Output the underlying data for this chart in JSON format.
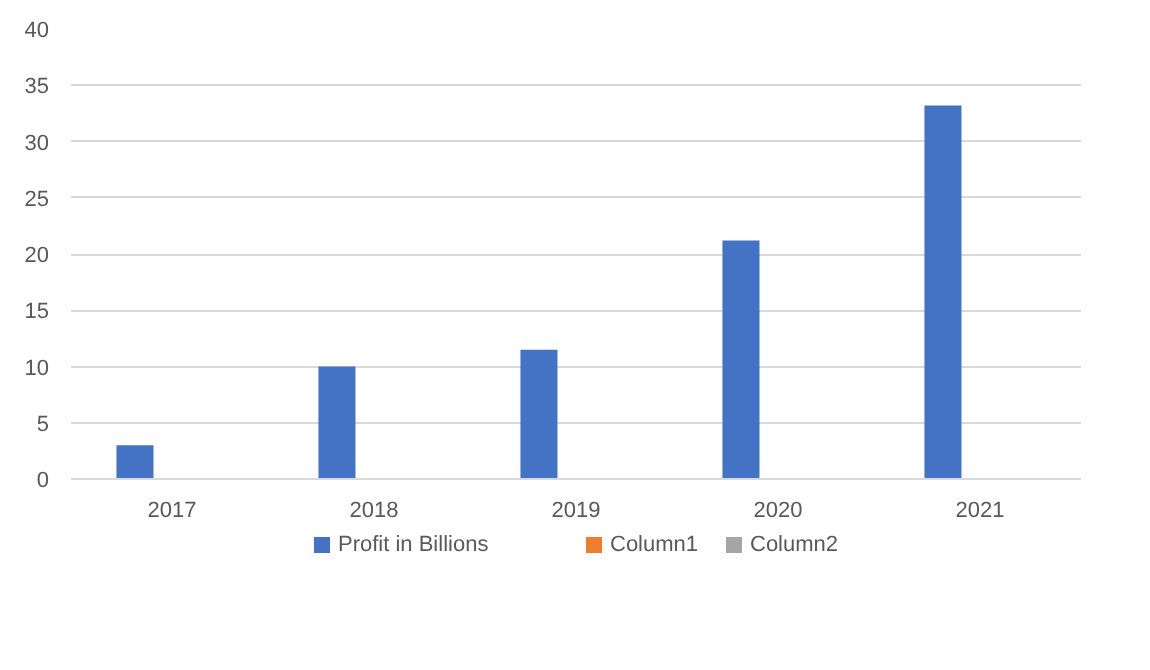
{
  "chart_data": {
    "type": "bar",
    "categories": [
      "2017",
      "2018",
      "2019",
      "2020",
      "2021"
    ],
    "series": [
      {
        "name": "Profit in Billions",
        "color": "#4472c4",
        "values": [
          3,
          10,
          11.5,
          21.2,
          33.2
        ]
      },
      {
        "name": "Column1",
        "color": "#ed7d31",
        "values": [
          null,
          null,
          null,
          null,
          null
        ]
      },
      {
        "name": "Column2",
        "color": "#a5a5a5",
        "values": [
          null,
          null,
          null,
          null,
          null
        ]
      }
    ],
    "ylim": [
      0,
      40
    ],
    "yticks": [
      0,
      5,
      10,
      15,
      20,
      25,
      30,
      35,
      40
    ],
    "grid": "y",
    "legend": "bottom"
  }
}
